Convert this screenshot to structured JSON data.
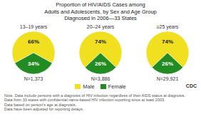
{
  "chart_data": {
    "type": "pie",
    "title": "Proportion of HIV/AIDS Cases among\nAdults and Adolescents, by Sex and Age Group\nDiagnosed in 2006—33 States",
    "categories": [
      "Male",
      "Female"
    ],
    "colors": [
      "#f0e020",
      "#228b22"
    ],
    "series": [
      {
        "name": "13–19 years",
        "values": [
          66,
          34
        ],
        "value_labels": [
          "66%",
          "34%"
        ],
        "annotation": "N=1,373"
      },
      {
        "name": "20–24 years",
        "values": [
          74,
          26
        ],
        "value_labels": [
          "74%",
          "26%"
        ],
        "annotation": "N=3,886"
      },
      {
        "name": "≥25 years",
        "values": [
          74,
          26
        ],
        "value_labels": [
          "74%",
          "26%"
        ],
        "annotation": "N=29,921"
      }
    ],
    "data_labels": true,
    "legend": "bottom",
    "annotations": [
      "Note. Data include persons with a diagnosis of HIV infection regardless of their AIDS status at diagnosis.\nData from 33 states with confidential name-based HIV infection reporting since at least 2003.\nData based on person's age at diagnosis.\nData have been adjusted for reporting delays.",
      "CDC"
    ]
  }
}
